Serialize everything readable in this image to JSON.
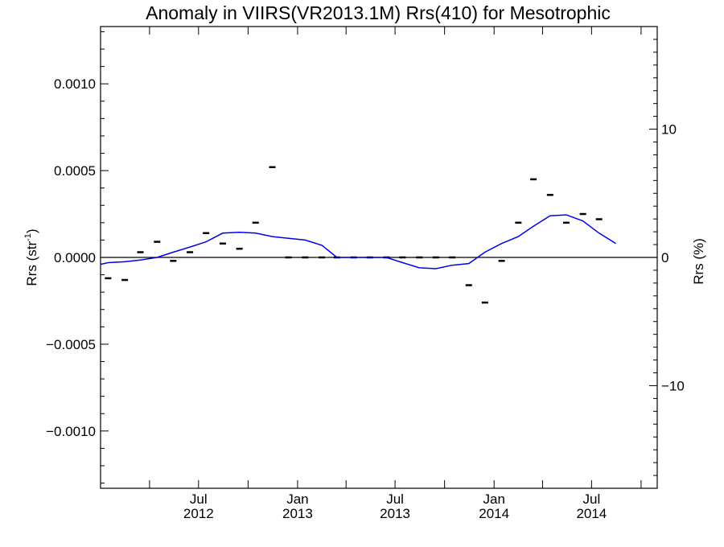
{
  "chart_data": {
    "type": "line",
    "title": "Anomaly in VIIRS(VR2013.1M) Rrs(410) for Mesotrophic",
    "ylabel_left": "Rrs (str",
    "ylabel_left_sup": "-1",
    "ylabel_left_close": ")",
    "ylabel_right": "Rrs (%)",
    "xlabel": "",
    "x_range": [
      "2012-01-01",
      "2014-10-31"
    ],
    "ylim_left": [
      -0.00133,
      0.00133
    ],
    "ylim_right": [
      -18.0,
      18.0
    ],
    "y_ticks_left": [
      {
        "value": 0.001,
        "label": "0.0010"
      },
      {
        "value": 0.0005,
        "label": "0.0005"
      },
      {
        "value": 0.0,
        "label": "0.0000"
      },
      {
        "value": -0.0005,
        "label": "−0.0005"
      },
      {
        "value": -0.001,
        "label": "−0.0010"
      }
    ],
    "y_ticks_right": [
      {
        "value": 10,
        "label": "10"
      },
      {
        "value": 0,
        "label": "0"
      },
      {
        "value": -10,
        "label": "−10"
      }
    ],
    "x_tick_labels": [
      {
        "date": "2012-07-01",
        "line1": "Jul",
        "line2": "2012"
      },
      {
        "date": "2013-01-01",
        "line1": "Jan",
        "line2": "2013"
      },
      {
        "date": "2013-07-01",
        "line1": "Jul",
        "line2": "2013"
      },
      {
        "date": "2014-01-01",
        "line1": "Jan",
        "line2": "2014"
      },
      {
        "date": "2014-07-01",
        "line1": "Jul",
        "line2": "2014"
      }
    ],
    "x_minor_ticks": [
      "2012-04-01",
      "2012-10-01",
      "2013-04-01",
      "2013-10-01",
      "2014-04-01",
      "2014-10-01"
    ],
    "grid": false,
    "zero_line": true,
    "series": [
      {
        "style": "marker-dash",
        "color": "#000000",
        "points": [
          {
            "x": "2012-01-15",
            "y": -0.00012
          },
          {
            "x": "2012-02-15",
            "y": -0.00013
          },
          {
            "x": "2012-03-15",
            "y": 3e-05
          },
          {
            "x": "2012-04-15",
            "y": 9e-05
          },
          {
            "x": "2012-05-15",
            "y": -2e-05
          },
          {
            "x": "2012-06-15",
            "y": 3e-05
          },
          {
            "x": "2012-07-15",
            "y": 0.00014
          },
          {
            "x": "2012-08-15",
            "y": 8e-05
          },
          {
            "x": "2012-09-15",
            "y": 5e-05
          },
          {
            "x": "2012-10-15",
            "y": 0.0002
          },
          {
            "x": "2012-11-15",
            "y": 0.00052
          },
          {
            "x": "2012-12-15",
            "y": 0.0
          },
          {
            "x": "2013-01-15",
            "y": 0.0
          },
          {
            "x": "2013-02-15",
            "y": 0.0
          },
          {
            "x": "2013-03-15",
            "y": 0.0
          },
          {
            "x": "2013-04-15",
            "y": 0.0
          },
          {
            "x": "2013-05-15",
            "y": 0.0
          },
          {
            "x": "2013-06-15",
            "y": 0.0
          },
          {
            "x": "2013-07-15",
            "y": 0.0
          },
          {
            "x": "2013-08-15",
            "y": 0.0
          },
          {
            "x": "2013-09-15",
            "y": 0.0
          },
          {
            "x": "2013-10-15",
            "y": 0.0
          },
          {
            "x": "2013-11-15",
            "y": -0.00016
          },
          {
            "x": "2013-12-15",
            "y": -0.00026
          },
          {
            "x": "2014-01-15",
            "y": -2e-05
          },
          {
            "x": "2014-02-15",
            "y": 0.0002
          },
          {
            "x": "2014-03-15",
            "y": 0.00045
          },
          {
            "x": "2014-04-15",
            "y": 0.00036
          },
          {
            "x": "2014-05-15",
            "y": 0.0002
          },
          {
            "x": "2014-06-15",
            "y": 0.00025
          },
          {
            "x": "2014-07-15",
            "y": 0.00022
          }
        ]
      },
      {
        "style": "line",
        "color": "#0000ee",
        "points": [
          {
            "x": "2012-01-01",
            "y": -4e-05
          },
          {
            "x": "2012-01-15",
            "y": -3e-05
          },
          {
            "x": "2012-02-15",
            "y": -2.5e-05
          },
          {
            "x": "2012-03-15",
            "y": -1.5e-05
          },
          {
            "x": "2012-04-15",
            "y": 0.0
          },
          {
            "x": "2012-05-15",
            "y": 3e-05
          },
          {
            "x": "2012-06-15",
            "y": 6e-05
          },
          {
            "x": "2012-07-15",
            "y": 9e-05
          },
          {
            "x": "2012-08-15",
            "y": 0.00014
          },
          {
            "x": "2012-09-15",
            "y": 0.000145
          },
          {
            "x": "2012-10-15",
            "y": 0.00014
          },
          {
            "x": "2012-11-15",
            "y": 0.00012
          },
          {
            "x": "2012-12-15",
            "y": 0.00011
          },
          {
            "x": "2013-01-15",
            "y": 0.0001
          },
          {
            "x": "2013-02-15",
            "y": 7e-05
          },
          {
            "x": "2013-03-15",
            "y": 0.0
          },
          {
            "x": "2013-04-15",
            "y": 0.0
          },
          {
            "x": "2013-05-15",
            "y": 0.0
          },
          {
            "x": "2013-06-15",
            "y": 0.0
          },
          {
            "x": "2013-07-15",
            "y": -3e-05
          },
          {
            "x": "2013-08-15",
            "y": -6e-05
          },
          {
            "x": "2013-09-15",
            "y": -6.5e-05
          },
          {
            "x": "2013-10-15",
            "y": -4.5e-05
          },
          {
            "x": "2013-11-15",
            "y": -3.5e-05
          },
          {
            "x": "2013-12-15",
            "y": 3e-05
          },
          {
            "x": "2014-01-15",
            "y": 8e-05
          },
          {
            "x": "2014-02-15",
            "y": 0.00012
          },
          {
            "x": "2014-03-15",
            "y": 0.00018
          },
          {
            "x": "2014-04-15",
            "y": 0.00024
          },
          {
            "x": "2014-05-15",
            "y": 0.000245
          },
          {
            "x": "2014-06-15",
            "y": 0.00021
          },
          {
            "x": "2014-07-15",
            "y": 0.00014
          },
          {
            "x": "2014-08-15",
            "y": 8e-05
          }
        ]
      }
    ]
  }
}
